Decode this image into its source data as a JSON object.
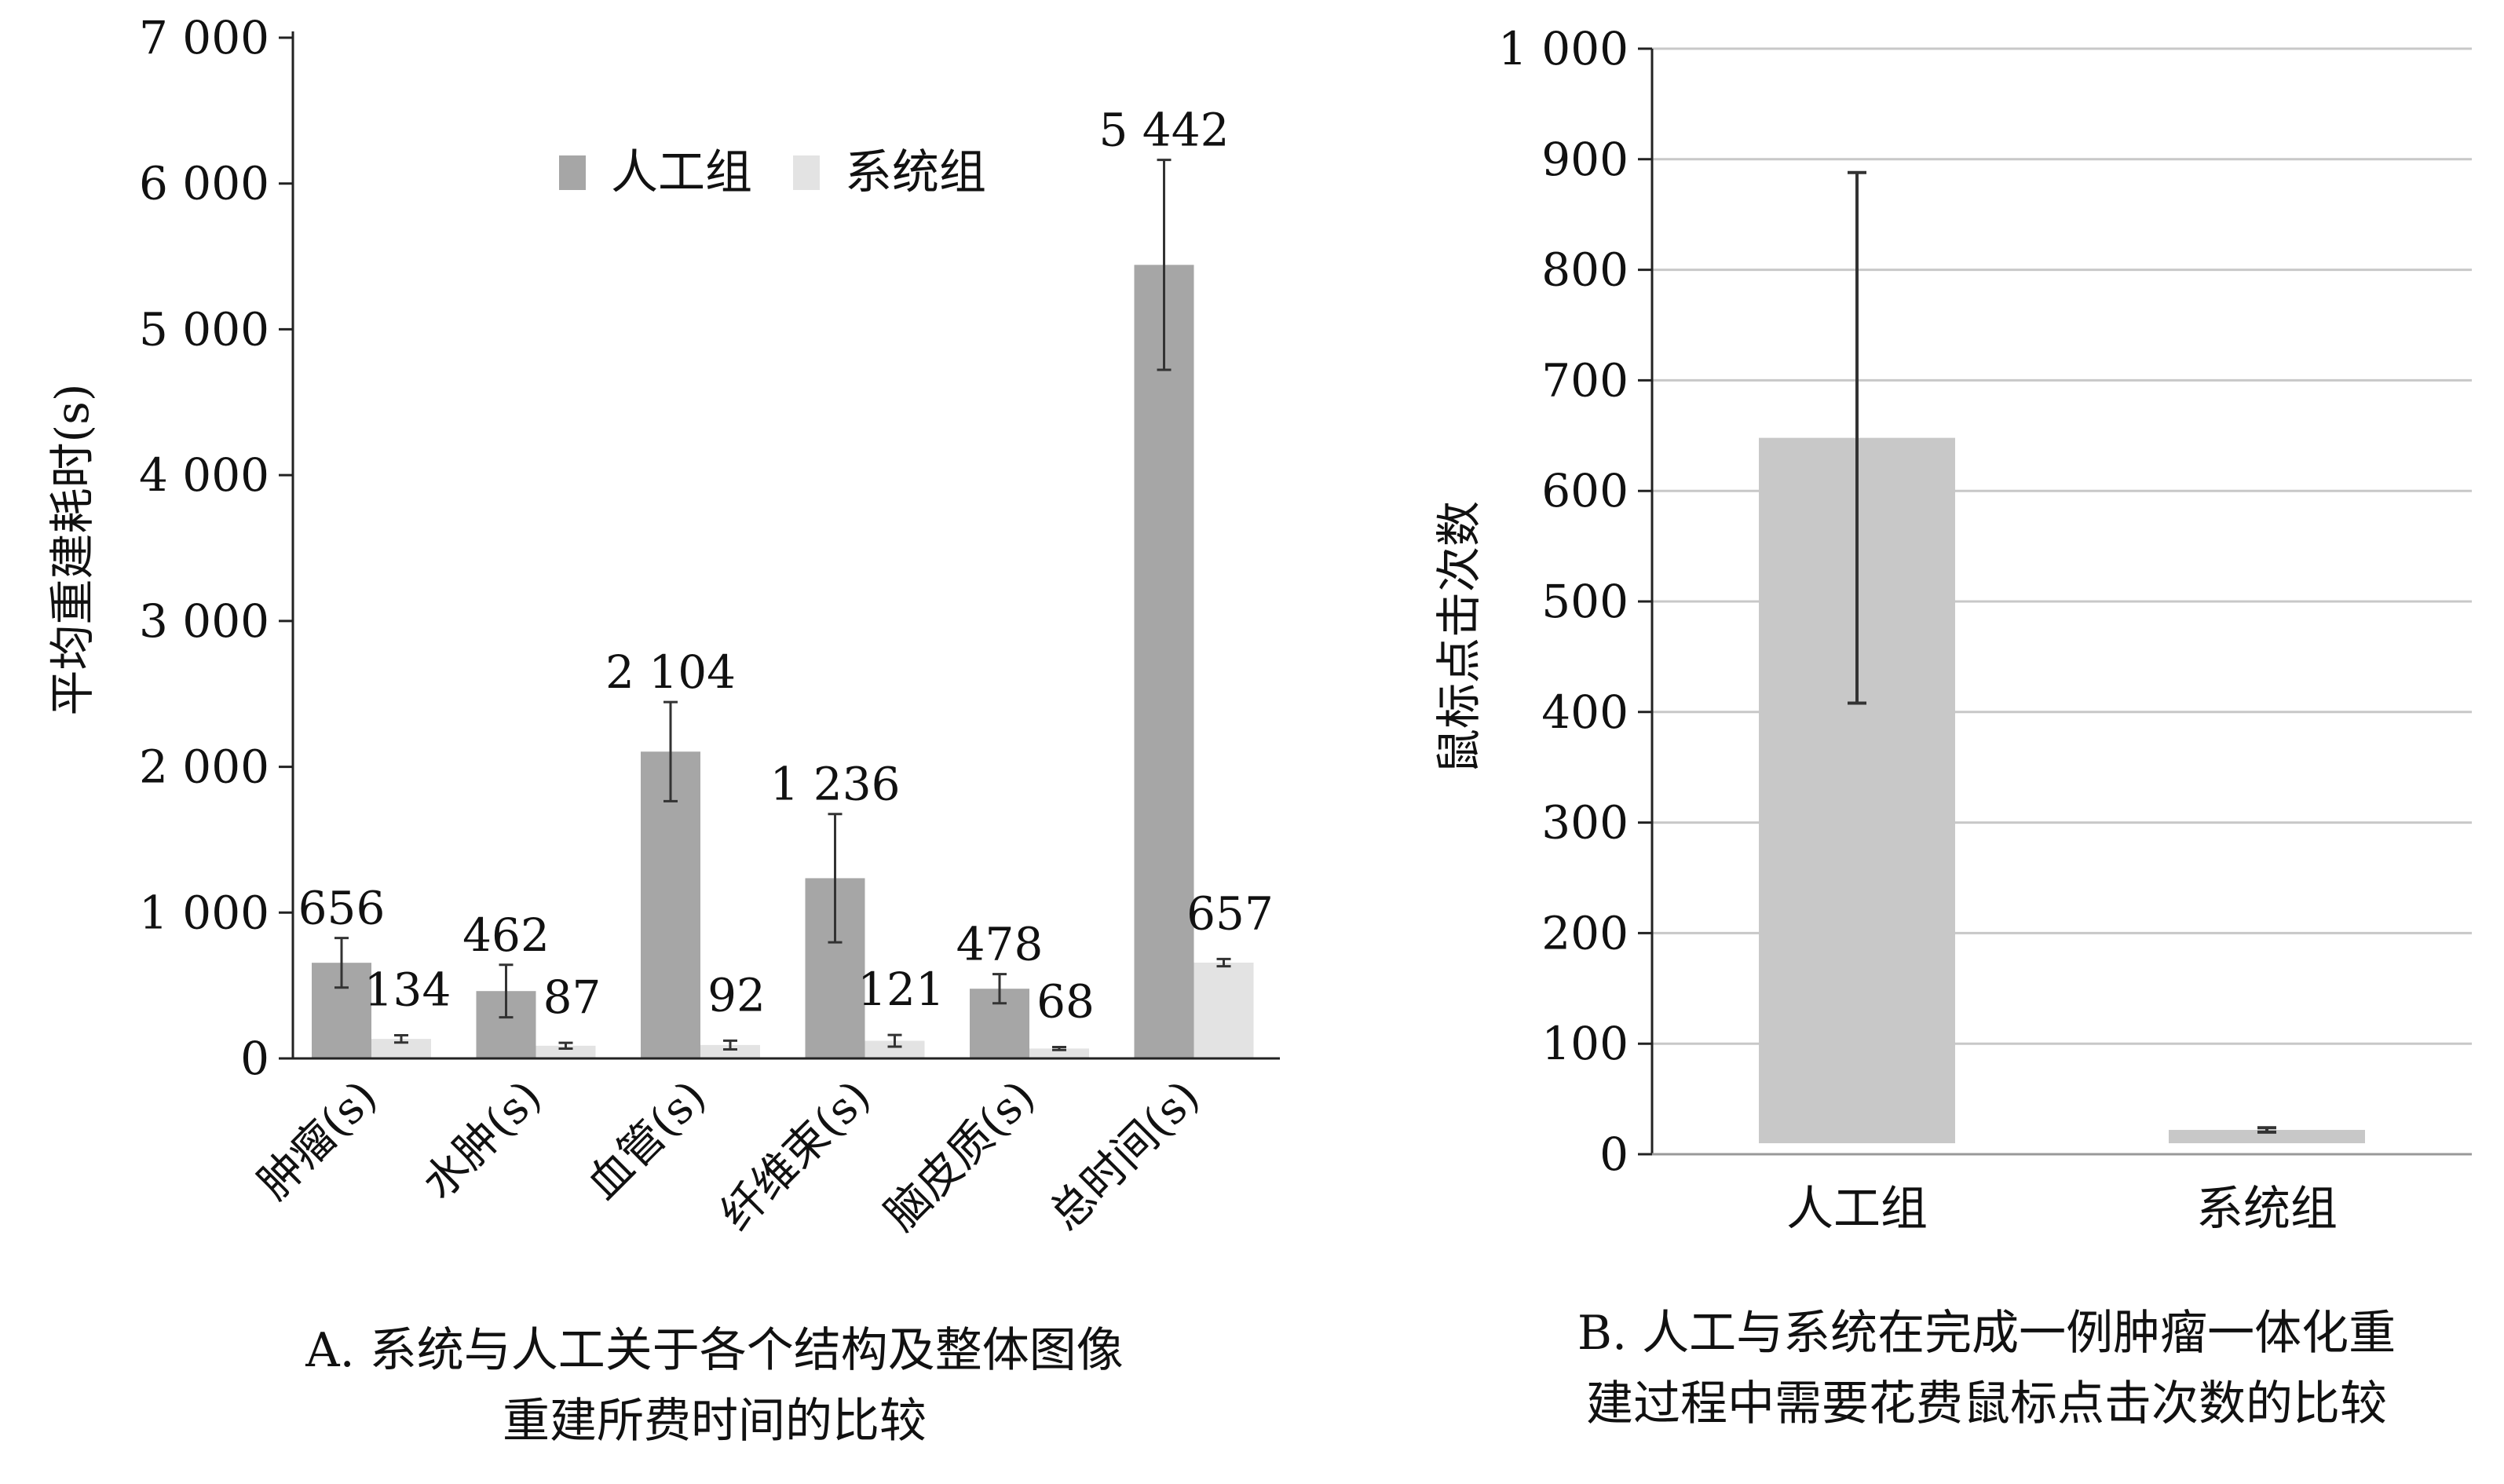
{
  "chart_data": [
    {
      "type": "bar",
      "ylabel": "平均重建耗时(s)",
      "xlabel": "",
      "ylim": [
        0,
        7000
      ],
      "yticks": [
        "0",
        "1 000",
        "2 000",
        "3 000",
        "4 000",
        "5 000",
        "6 000",
        "7 000"
      ],
      "ytick_values": [
        0,
        1000,
        2000,
        3000,
        4000,
        5000,
        6000,
        7000
      ],
      "categories": [
        "肿瘤(s)",
        "水肿(s)",
        "血管(s)",
        "纤维束(s)",
        "脑皮质(s)",
        "总时间(s)"
      ],
      "series": [
        {
          "name": "人工组",
          "color": "#a6a6a6",
          "values": [
            656,
            462,
            2104,
            1236,
            478,
            5442
          ],
          "labels": [
            "656",
            "462",
            "2 104",
            "1 236",
            "478",
            "5 442"
          ],
          "error": [
            170,
            180,
            340,
            440,
            100,
            720
          ]
        },
        {
          "name": "系统组",
          "color": "#e3e3e3",
          "values": [
            134,
            87,
            92,
            121,
            68,
            657
          ],
          "labels": [
            "134",
            "87",
            "92",
            "121",
            "68",
            "657"
          ],
          "error": [
            25,
            20,
            30,
            40,
            10,
            25
          ]
        }
      ],
      "legend": {
        "position": "top-center",
        "entries": [
          "人工组",
          "系统组"
        ]
      },
      "grid": false,
      "caption": [
        "A. 系统与人工关于各个结构及整体图像",
        "重建所费时间的比较"
      ]
    },
    {
      "type": "bar",
      "ylabel": "鼠标点击次数",
      "xlabel": "",
      "ylim": [
        0,
        1000
      ],
      "yticks": [
        "0",
        "100",
        "200",
        "300",
        "400",
        "500",
        "600",
        "700",
        "800",
        "900",
        "1 000"
      ],
      "ytick_values": [
        0,
        100,
        200,
        300,
        400,
        500,
        600,
        700,
        800,
        900,
        1000
      ],
      "categories": [
        "人工组",
        "系统组"
      ],
      "series": [
        {
          "color": "#c8c8c8",
          "values": [
            648,
            22
          ],
          "error": [
            240,
            2
          ]
        }
      ],
      "grid": true,
      "caption": [
        "B. 人工与系统在完成一例肿瘤一体化重",
        "建过程中需要花费鼠标点击次数的比较"
      ]
    }
  ]
}
